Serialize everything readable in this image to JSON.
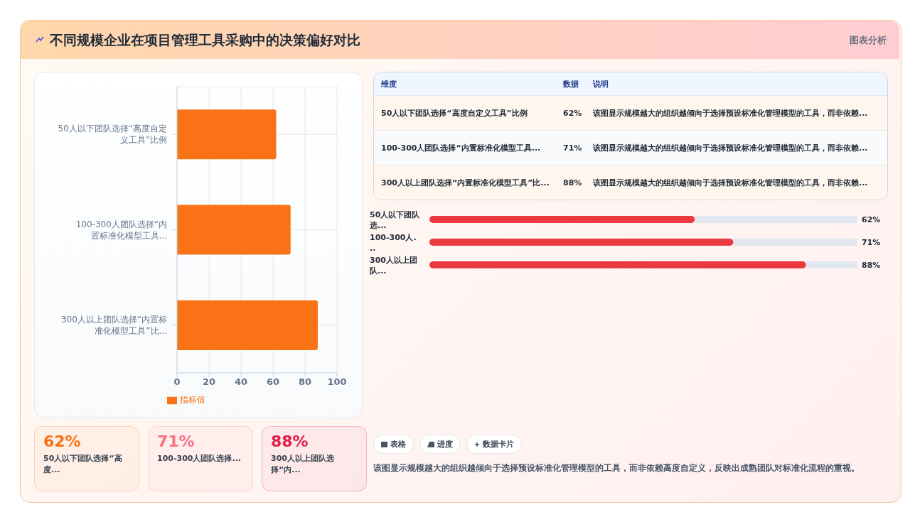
{
  "chart_data": [
    {
      "type": "bar",
      "title": "不同规模企业在项目管理工具采购中的决策偏好对比",
      "annotations": [
        "图表分析",
        "表格",
        "进度",
        "数据卡片",
        "该图显示规模越大的组织越倾向于选择预设标准化管理模型的工具，而非依赖高度自定义，反映出成熟团队对标准化流程的重视。"
      ],
      "orientation": "horizontal",
      "categories": [
        "50人以下团队选择“高度自定义工具”比例",
        "100-300人团队选择“内置标准化模型工具...",
        "300人以上团队选择“内置标准化模型工具”比..."
      ],
      "series": [
        {
          "name": "指标值",
          "color": "#f97316",
          "values": [
            62,
            71,
            88
          ]
        }
      ],
      "xlim": [
        0,
        100
      ],
      "xticks": [
        0,
        20,
        40,
        60,
        80,
        100
      ],
      "grid": true,
      "legend": "bottom"
    },
    {
      "type": "other",
      "annotations": [
        "维度",
        "数据",
        "说明",
        "50人以下团队选择“高度自定义工具”比例",
        "62%",
        "该图显示规模越大的组织越倾向于选择预设标准化管理模型的工具，而非依赖...",
        "100-300人团队选择“内置标准化模型工具...",
        "71%",
        "该图显示规模越大的组织越倾向于选择预设标准化管理模型的工具，而非依赖...",
        "300人以上团队选择“内置标准化模型工具”比...",
        "88%",
        "该图显示规模越大的组织越倾向于选择预设标准化管理模型的工具，而非依赖..."
      ]
    },
    {
      "type": "bar",
      "orientation": "horizontal",
      "categories": [
        "50人以下团队选...",
        "100-300人...",
        "300人以上团队..."
      ],
      "values": [
        62,
        71,
        88
      ],
      "value_labels": [
        "62%",
        "71%",
        "88%"
      ],
      "color": "#ea3a3f"
    },
    {
      "type": "other",
      "categories": [
        "50人以下团队选择“高度...",
        "100-300人团队选择...",
        "300人以上团队选择“内..."
      ],
      "value_labels": [
        "62%",
        "71%",
        "88%"
      ],
      "colors": [
        "#f97316",
        "#f87185",
        "#e11d48"
      ]
    }
  ]
}
